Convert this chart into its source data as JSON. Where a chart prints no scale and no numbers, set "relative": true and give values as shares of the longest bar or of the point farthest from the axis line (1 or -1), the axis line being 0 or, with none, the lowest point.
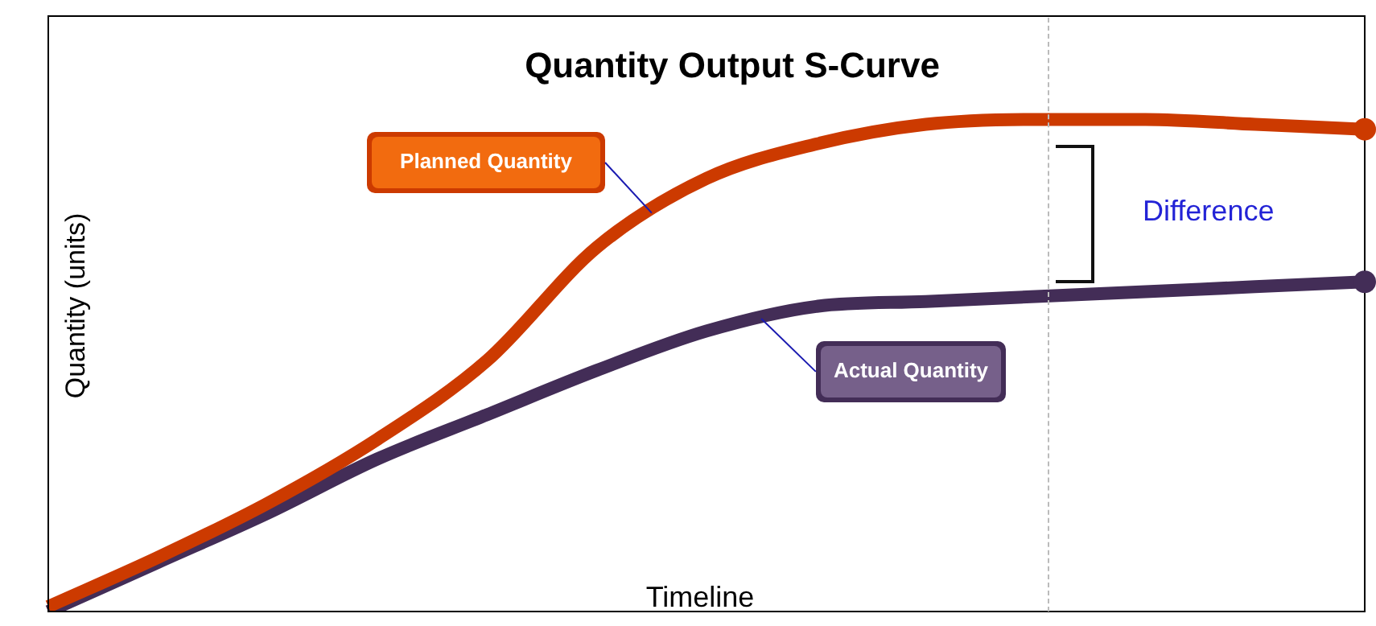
{
  "chart_data": {
    "type": "line",
    "title": "Quantity Output S-Curve",
    "xlabel": "Timeline",
    "ylabel": "Quantity (units)",
    "relative": true,
    "categories": [
      null,
      null,
      null,
      null,
      null,
      null,
      null,
      null,
      null,
      null,
      null,
      null,
      null
    ],
    "line_style": "solid",
    "series": [
      {
        "name": "Planned Quantity",
        "color": "#cc3a00",
        "values": [
          0.01,
          0.11,
          0.22,
          0.35,
          0.51,
          0.74,
          0.88,
          0.95,
          0.99,
          1.0,
          1.0,
          0.99,
          0.98
        ]
      },
      {
        "name": "Actual Quantity",
        "color": "#432d57",
        "values": [
          0,
          0.1,
          0.2,
          0.31,
          0.4,
          0.49,
          0.57,
          0.62,
          0.63,
          0.64,
          0.65,
          0.66,
          0.67
        ]
      }
    ],
    "annotations": [
      "Difference"
    ]
  }
}
